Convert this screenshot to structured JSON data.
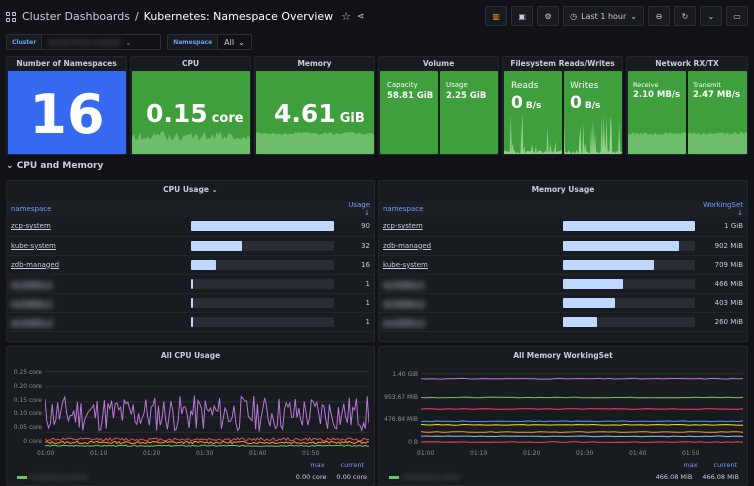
{
  "header": {
    "parent": "Cluster Dashboards",
    "separator": "/",
    "title": "Kubernetes: Namespace Overview",
    "time_range": "Last 1 hour"
  },
  "variables": [
    {
      "label": "Cluster",
      "value": "production-cluster"
    },
    {
      "label": "Namespace",
      "value": "All"
    }
  ],
  "stats": {
    "namespaces": {
      "title": "Number of Namespaces",
      "value": "16"
    },
    "cpu": {
      "title": "CPU",
      "value": "0.15",
      "unit": "core"
    },
    "memory": {
      "title": "Memory",
      "value": "4.61",
      "unit": "GiB"
    },
    "volume": {
      "title": "Volume",
      "capacity_label": "Capacity",
      "capacity": "58.81 GiB",
      "usage_label": "Usage",
      "usage": "2.25 GiB"
    },
    "fs": {
      "title": "Filesystem Reads/Writes",
      "reads_label": "Reads",
      "reads": "0",
      "writes_label": "Writes",
      "writes": "0",
      "unit": "B/s"
    },
    "net": {
      "title": "Network RX/TX",
      "receive_label": "Receive",
      "receive": "2.10 MB/s",
      "transmit_label": "Transmit",
      "transmit": "2.47 MB/s"
    }
  },
  "row_title": "CPU and Memory",
  "cpu_usage": {
    "title": "CPU Usage",
    "col_name": "namespace",
    "col_value": "Usage",
    "max": 90,
    "rows": [
      {
        "name": "zcp-system",
        "value": 90,
        "label": "90"
      },
      {
        "name": "kube-system",
        "value": 32,
        "label": "32"
      },
      {
        "name": "zdb-managed",
        "value": 16,
        "label": "16"
      },
      {
        "name": "ns-hidden-1",
        "value": 1,
        "label": "1"
      },
      {
        "name": "ns-hidden-2",
        "value": 1,
        "label": "1"
      },
      {
        "name": "ns-hidden-3",
        "value": 1,
        "label": "1"
      }
    ]
  },
  "memory_usage": {
    "title": "Memory Usage",
    "col_name": "namespace",
    "col_value": "WorkingSet",
    "max": 1024,
    "rows": [
      {
        "name": "zcp-system",
        "value": 1024,
        "label": "1 GiB"
      },
      {
        "name": "zdb-managed",
        "value": 902,
        "label": "902 MiB"
      },
      {
        "name": "kube-system",
        "value": 709,
        "label": "709 MiB"
      },
      {
        "name": "ns-hidden-1",
        "value": 466,
        "label": "466 MiB"
      },
      {
        "name": "ns-hidden-2",
        "value": 403,
        "label": "403 MiB"
      },
      {
        "name": "ns-hidden-3",
        "value": 260,
        "label": "260 MiB"
      }
    ]
  },
  "all_cpu": {
    "title": "All CPU Usage",
    "yticks": [
      "0.25 core",
      "0.20 core",
      "0.15 core",
      "0.10 core",
      "0.05 core",
      "0 core"
    ],
    "xticks": [
      "01:00",
      "01:10",
      "01:20",
      "01:30",
      "01:40",
      "01:50"
    ],
    "legend_max": "max",
    "legend_current": "current",
    "legend_max_val": "0.00 core",
    "legend_current_val": "0.00 core"
  },
  "all_mem": {
    "title": "All Memory WorkingSet",
    "yticks": [
      "1.40 GiB",
      "953.67 MiB",
      "476.84 MiB",
      "0 B"
    ],
    "xticks": [
      "01:00",
      "01:10",
      "01:20",
      "01:30",
      "01:40",
      "01:50"
    ],
    "legend_max": "max",
    "legend_current": "current",
    "legend_max_val": "466.08 MiB",
    "legend_current_val": "466.08 MiB"
  },
  "colors": {
    "blue": "#3769f0",
    "green": "#3f9f3c",
    "bar": "#c0d8ff",
    "accent": "#6e9fff"
  }
}
